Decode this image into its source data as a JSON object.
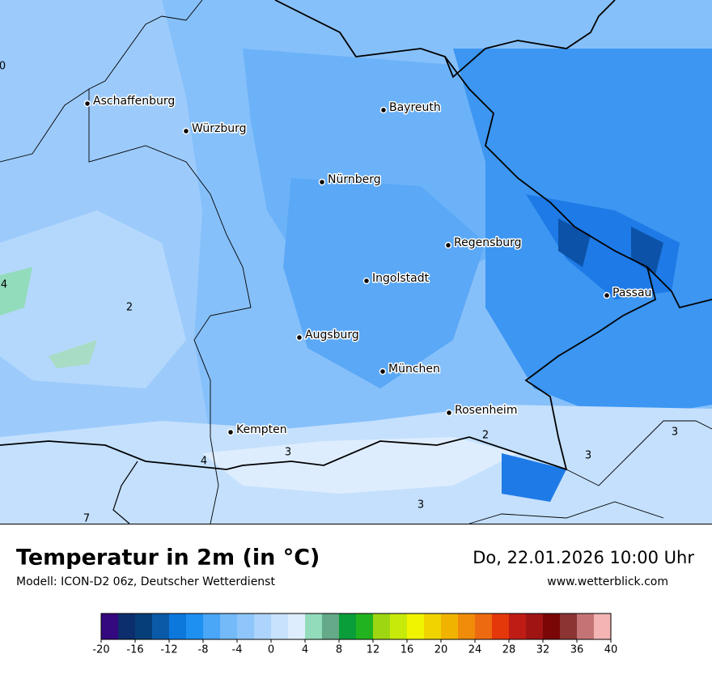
{
  "map": {
    "cities": [
      "Aschaffenburg",
      "Würzburg",
      "Bayreuth",
      "Nürnberg",
      "Regensburg",
      "Ingolstadt",
      "Passau",
      "Augsburg",
      "München",
      "Rosenheim",
      "Kempten"
    ],
    "contour_labels": [
      0,
      4,
      2,
      4,
      3,
      2,
      3,
      3,
      3,
      7
    ]
  },
  "header": {
    "title": "Temperatur in 2m (in °C)",
    "model": "Modell: ICON-D2 06z, Deutscher Wetterdienst",
    "datetime": "Do, 22.01.2026 10:00 Uhr",
    "website": "www.wetterblick.com"
  },
  "colorbar": {
    "range": [
      -20,
      40
    ],
    "ticks": [
      -20,
      -16,
      -12,
      -8,
      -4,
      0,
      4,
      8,
      12,
      16,
      20,
      24,
      28,
      32,
      36,
      40
    ],
    "colors": [
      "#34087e",
      "#0c2e6c",
      "#063e7a",
      "#0a5aa8",
      "#0c78dc",
      "#1e90f0",
      "#4aa6f6",
      "#74baf9",
      "#8ec6fb",
      "#acd4fc",
      "#c8e2fd",
      "#deedfe",
      "#92dcbc",
      "#64aa88",
      "#0a9e3a",
      "#22b41e",
      "#9ed612",
      "#c8ea0a",
      "#f0f400",
      "#f0d400",
      "#f0b400",
      "#f08c0a",
      "#ee6a10",
      "#e4380a",
      "#c01c16",
      "#a01414",
      "#7a0606",
      "#8c3434",
      "#c47474",
      "#f4b4b4"
    ]
  }
}
